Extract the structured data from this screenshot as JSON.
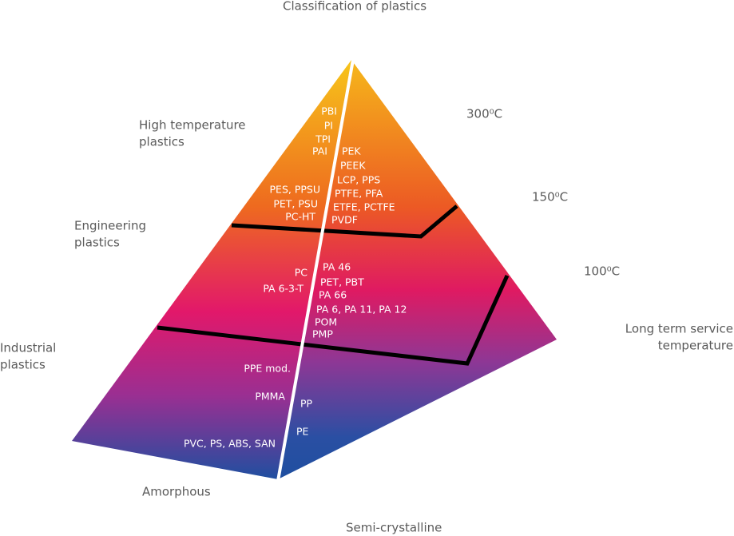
{
  "title": "Classification of plastics",
  "tiers": [
    {
      "label": [
        "High temperature",
        "plastics"
      ],
      "temperature": "300⁰C",
      "amorphous": [
        "PBI",
        "PI",
        "TPI",
        "PAI",
        "PES, PPSU",
        "PET, PSU",
        "PC-HT"
      ],
      "semi_crystalline": [
        "PEK",
        "PEEK",
        "LCP, PPS",
        "PTFE, PFA",
        "ETFE, PCTFE",
        "PVDF"
      ]
    },
    {
      "label": [
        "Engineering",
        "plastics"
      ],
      "temperature": "150⁰C",
      "amorphous": [
        "PC",
        "PA 6-3-T"
      ],
      "semi_crystalline": [
        "PA 46",
        "PET, PBT",
        "PA 66",
        "PA 6, PA 11, PA 12",
        "POM",
        "PMP"
      ]
    },
    {
      "label": [
        "Industrial",
        "plastics"
      ],
      "temperature": "100⁰C",
      "amorphous": [
        "PPE mod.",
        "PMMA",
        "PVC, PS, ABS, SAN"
      ],
      "semi_crystalline": [
        "PP",
        "PE"
      ]
    }
  ],
  "temperature_axis": [
    "Long term service",
    "temperature"
  ],
  "amorphous_label": "Amorphous",
  "semi_crystalline_label": "Semi-crystalline"
}
